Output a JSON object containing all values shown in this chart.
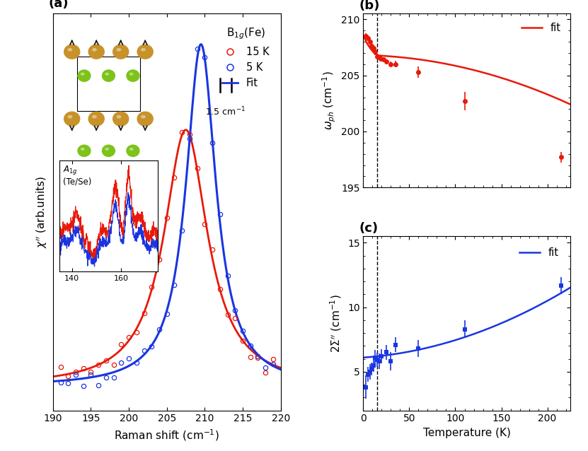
{
  "panel_a": {
    "xmin": 190,
    "xmax": 220,
    "xlabel": "Raman shift (cm$^{-1}$)",
    "ylabel": "$\\chi''$ (arb.units)",
    "title_line1": "B$_{1g}$(Fe)",
    "legend_15K": "15 K",
    "legend_5K": "5 K",
    "legend_fit": "Fit",
    "red_peak": 207.5,
    "red_gamma": 3.5,
    "red_amp": 0.75,
    "red_bg": 0.04,
    "blue_peak": 209.5,
    "blue_gamma": 2.4,
    "blue_amp": 1.0,
    "blue_bg": 0.04,
    "scalebar_x1": 212.0,
    "scalebar_x2": 213.5,
    "scalebar_label": "1.5 cm$^{-1}$"
  },
  "panel_b": {
    "temp_data": [
      3,
      5,
      7,
      9,
      11,
      13,
      15,
      17,
      19,
      22,
      25,
      30,
      35,
      60,
      110,
      215
    ],
    "omega_data": [
      208.5,
      208.3,
      208.0,
      207.6,
      207.4,
      207.1,
      206.7,
      206.6,
      206.5,
      206.4,
      206.2,
      206.0,
      206.0,
      205.3,
      202.7,
      197.7
    ],
    "omega_err": [
      0.25,
      0.25,
      0.25,
      0.35,
      0.3,
      0.3,
      0.25,
      0.2,
      0.2,
      0.2,
      0.2,
      0.2,
      0.3,
      0.5,
      0.8,
      0.45
    ],
    "dashed_x": 15,
    "ylabel": "$\\omega_{ph}$ (cm$^{-1}$)",
    "ylim": [
      195,
      210.5
    ],
    "yticks": [
      195,
      200,
      205,
      210
    ],
    "xlim": [
      0,
      225
    ],
    "xticks": [
      0,
      50,
      100,
      150,
      200
    ],
    "legend_fit": "fit"
  },
  "panel_c": {
    "temp_data": [
      3,
      5,
      7,
      9,
      11,
      13,
      15,
      17,
      20,
      25,
      30,
      35,
      60,
      110,
      215
    ],
    "sigma_data": [
      3.8,
      4.8,
      5.0,
      5.2,
      5.5,
      6.1,
      5.9,
      5.8,
      6.2,
      6.5,
      5.8,
      7.1,
      6.8,
      8.3,
      11.7
    ],
    "sigma_err": [
      0.9,
      0.6,
      0.6,
      0.5,
      0.5,
      0.6,
      0.55,
      0.6,
      0.55,
      0.6,
      0.7,
      0.6,
      0.65,
      0.7,
      0.65
    ],
    "dashed_x": 15,
    "ylabel": "2$\\Sigma''$ (cm$^{-1}$)",
    "ylim": [
      2,
      15.5
    ],
    "yticks": [
      5,
      10,
      15
    ],
    "xlim": [
      0,
      225
    ],
    "xticks": [
      0,
      50,
      100,
      150,
      200
    ],
    "legend_fit": "fit",
    "xlabel": "Temperature (K)"
  },
  "colors": {
    "red": "#e8190a",
    "blue": "#1a35e0",
    "dashed": "#555555",
    "gold": "#C8922A",
    "green": "#7DC31A"
  }
}
